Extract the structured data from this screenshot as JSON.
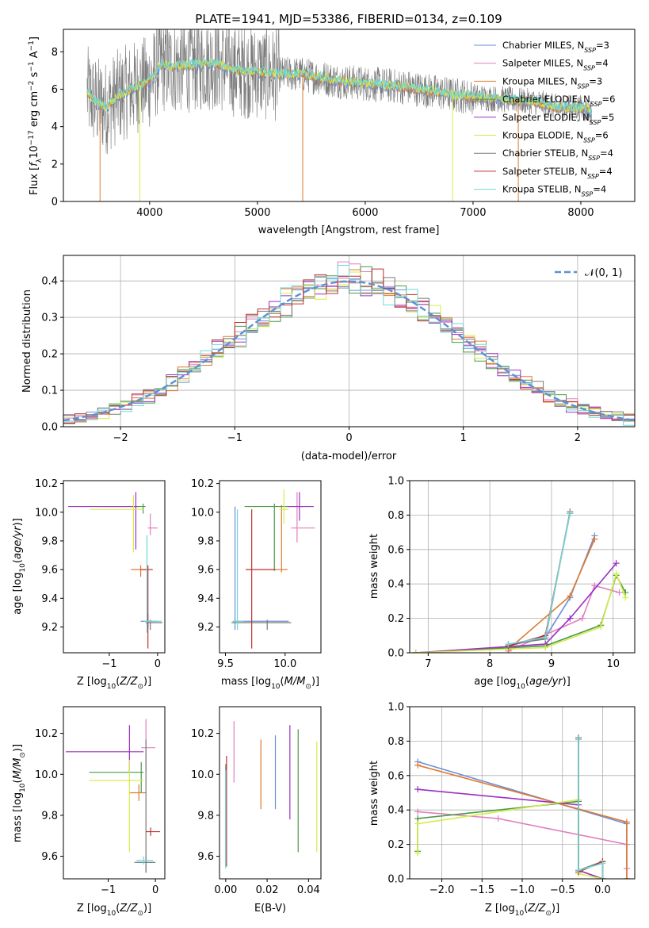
{
  "title": "PLATE=1941, MJD=53386, FIBERID=0134, z=0.109",
  "colors": {
    "Chabrier MILES": "#6c8ed8",
    "Salpeter MILES": "#e07fbf",
    "Kroupa MILES": "#e07a2e",
    "Chabrier ELODIE": "#4a9a4a",
    "Salpeter ELODIE": "#9b30c0",
    "Kroupa ELODIE": "#d6ec4a",
    "Chabrier STELIB": "#7a7a7a",
    "Salpeter STELIB": "#c03030",
    "Kroupa STELIB": "#6fd8d8",
    "gaussian": "#5b8fd6"
  },
  "chart_data": [
    {
      "id": "spectrum",
      "type": "line",
      "xlabel": "wavelength [Angstrom, rest frame]",
      "ylabel": "Flux [f_λ 10^-17 erg cm^-2 s^-1 A^-1]",
      "xlim": [
        3200,
        8500
      ],
      "ylim": [
        0,
        9.2
      ],
      "xticks": [
        4000,
        5000,
        6000,
        7000,
        8000
      ],
      "yticks": [
        0,
        2,
        4,
        6,
        8
      ],
      "legend_placement": "top-right",
      "legend": [
        {
          "name": "Chabrier MILES",
          "nssp": "3"
        },
        {
          "name": "Salpeter MILES",
          "nssp": "4"
        },
        {
          "name": "Kroupa MILES",
          "nssp": "3"
        },
        {
          "name": "Chabrier ELODIE",
          "nssp": "6"
        },
        {
          "name": "Salpeter ELODIE",
          "nssp": "5"
        },
        {
          "name": "Kroupa ELODIE",
          "nssp": "6"
        },
        {
          "name": "Chabrier STELIB",
          "nssp": "4"
        },
        {
          "name": "Salpeter STELIB",
          "nssp": "4"
        },
        {
          "name": "Kroupa STELIB",
          "nssp": "4"
        }
      ],
      "model_continuum": {
        "wavelength": [
          3420,
          3500,
          3600,
          3700,
          3800,
          3900,
          4000,
          4100,
          4200,
          4400,
          4600,
          4800,
          5000,
          5200,
          5400,
          5600,
          5800,
          6000,
          6200,
          6400,
          6600,
          6800,
          7000,
          7200,
          7400,
          7600,
          7800,
          8000,
          8100
        ],
        "flux": [
          5.8,
          5.3,
          5.0,
          5.6,
          5.9,
          6.2,
          6.4,
          7.3,
          7.2,
          7.3,
          7.4,
          7.0,
          6.9,
          6.8,
          6.8,
          6.6,
          6.4,
          6.3,
          6.2,
          6.1,
          5.9,
          5.7,
          5.6,
          5.5,
          5.4,
          5.3,
          5.0,
          5.0,
          4.8
        ]
      },
      "data_noise_band": 1.6,
      "dropouts": [
        {
          "wavelength": 3540,
          "color": "Kroupa MILES"
        },
        {
          "wavelength": 3910,
          "color": "Kroupa ELODIE"
        },
        {
          "wavelength": 5420,
          "color": "Kroupa MILES"
        },
        {
          "wavelength": 6810,
          "color": "Kroupa ELODIE"
        },
        {
          "wavelength": 7420,
          "color": "Kroupa MILES"
        }
      ]
    },
    {
      "id": "residuals",
      "type": "histogram",
      "xlabel": "(data-model)/error",
      "ylabel": "Normed distribution",
      "xlim": [
        -2.5,
        2.5
      ],
      "ylim": [
        0,
        0.47
      ],
      "xticks": [
        -2,
        -1,
        0,
        1,
        2
      ],
      "yticks": [
        0,
        0.1,
        0.2,
        0.3,
        0.4
      ],
      "grid": true,
      "legend_placement": "top-right",
      "gaussian_label": "𝒩(0, 1)",
      "bin_width": 0.1,
      "bin_start": -2.5,
      "gaussian_sigma": 1.0
    },
    {
      "id": "Z_age",
      "type": "errorbar",
      "xlabel": "Z [log10(Z/Z⊙)]",
      "ylabel": "age [log10(age/yr)]",
      "xlim": [
        -1.95,
        0.15
      ],
      "ylim": [
        9.02,
        10.22
      ],
      "xticks": [
        -1,
        0
      ],
      "yticks": [
        9.2,
        9.4,
        9.6,
        9.8,
        10.0,
        10.2
      ],
      "points": [
        {
          "series": "Chabrier MILES",
          "x": -0.2,
          "y": 9.24,
          "xerr": [
            0.15,
            0.2
          ],
          "yerr": [
            0.05,
            0.05
          ]
        },
        {
          "series": "Salpeter MILES",
          "x": -0.15,
          "y": 9.89,
          "xerr": [
            0.05,
            0.15
          ],
          "yerr": [
            0.05,
            0.1
          ]
        },
        {
          "series": "Kroupa MILES",
          "x": -0.35,
          "y": 9.6,
          "xerr": [
            0.2,
            0.15
          ],
          "yerr": [
            0.05,
            0.03
          ]
        },
        {
          "series": "Chabrier ELODIE",
          "x": -0.3,
          "y": 10.04,
          "xerr": [
            0.95,
            0.05
          ],
          "yerr": [
            0.05,
            0.02
          ]
        },
        {
          "series": "Salpeter ELODIE",
          "x": -0.45,
          "y": 10.04,
          "xerr": [
            1.4,
            0.05
          ],
          "yerr": [
            0.3,
            0.1
          ]
        },
        {
          "series": "Kroupa ELODIE",
          "x": -0.5,
          "y": 10.02,
          "xerr": [
            0.9,
            0.2
          ],
          "yerr": [
            0.3,
            0.1
          ]
        },
        {
          "series": "Chabrier STELIB",
          "x": -0.15,
          "y": 9.23,
          "xerr": [
            0.1,
            0.25
          ],
          "yerr": [
            0.05,
            0.02
          ]
        },
        {
          "series": "Salpeter STELIB",
          "x": -0.2,
          "y": 9.6,
          "xerr": [
            0.15,
            0.1
          ],
          "yerr": [
            0.55,
            0.03
          ]
        },
        {
          "series": "Kroupa STELIB",
          "x": -0.22,
          "y": 9.24,
          "xerr": [
            0.05,
            0.3
          ],
          "yerr": [
            0.08,
            0.6
          ]
        }
      ]
    },
    {
      "id": "mass_age",
      "type": "errorbar",
      "xlabel": "mass [log10(M/M⊙)]",
      "ylabel": "",
      "xlim": [
        9.45,
        10.3
      ],
      "ylim": [
        9.02,
        10.22
      ],
      "xticks": [
        9.5,
        10.0
      ],
      "yticks": [
        9.2,
        9.4,
        9.6,
        9.8,
        10.0,
        10.2
      ],
      "points": [
        {
          "series": "Chabrier MILES",
          "x": 9.58,
          "y": 9.24,
          "xerr": [
            0.02,
            0.45
          ],
          "yerr": [
            0.06,
            0.8
          ]
        },
        {
          "series": "Salpeter MILES",
          "x": 10.1,
          "y": 9.89,
          "xerr": [
            0.05,
            0.15
          ],
          "yerr": [
            0.1,
            0.25
          ]
        },
        {
          "series": "Kroupa MILES",
          "x": 9.97,
          "y": 9.6,
          "xerr": [
            0.05,
            0.05
          ],
          "yerr": [
            0.02,
            0.45
          ]
        },
        {
          "series": "Chabrier ELODIE",
          "x": 9.91,
          "y": 10.04,
          "xerr": [
            0.25,
            0.25
          ],
          "yerr": [
            0.45,
            0.02
          ]
        },
        {
          "series": "Salpeter ELODIE",
          "x": 10.12,
          "y": 10.04,
          "xerr": [
            0.1,
            0.12
          ],
          "yerr": [
            0.1,
            0.1
          ]
        },
        {
          "series": "Kroupa ELODIE",
          "x": 9.99,
          "y": 10.02,
          "xerr": [
            0.04,
            0.04
          ],
          "yerr": [
            0.1,
            0.14
          ]
        },
        {
          "series": "Chabrier STELIB",
          "x": 9.85,
          "y": 9.23,
          "xerr": [
            0.3,
            0.2
          ],
          "yerr": [
            0.05,
            0.02
          ]
        },
        {
          "series": "Salpeter STELIB",
          "x": 9.72,
          "y": 9.6,
          "xerr": [
            0.05,
            0.2
          ],
          "yerr": [
            0.55,
            0.42
          ]
        },
        {
          "series": "Kroupa STELIB",
          "x": 9.6,
          "y": 9.24,
          "xerr": [
            0.04,
            0.05
          ],
          "yerr": [
            0.06,
            0.78
          ]
        }
      ]
    },
    {
      "id": "age_weight",
      "type": "line",
      "xlabel": "age [log10(age/yr)]",
      "ylabel": "mass weight",
      "xlim": [
        6.7,
        10.35
      ],
      "ylim": [
        0,
        1.0
      ],
      "xticks": [
        7,
        8,
        9,
        10
      ],
      "yticks": [
        0,
        0.2,
        0.4,
        0.6,
        0.8,
        1.0
      ],
      "grid": true,
      "series": [
        {
          "name": "Chabrier MILES",
          "x": [
            8.3,
            8.9,
            9.3,
            9.7
          ],
          "y": [
            0.04,
            0.09,
            0.32,
            0.68
          ]
        },
        {
          "name": "Salpeter MILES",
          "x": [
            8.3,
            9.5,
            9.7,
            10.1
          ],
          "y": [
            0.01,
            0.2,
            0.39,
            0.35
          ]
        },
        {
          "name": "Kroupa MILES",
          "x": [
            8.3,
            9.3,
            9.7
          ],
          "y": [
            0.02,
            0.33,
            0.66
          ]
        },
        {
          "name": "Chabrier ELODIE",
          "x": [
            6.8,
            8.9,
            9.8,
            10.05,
            10.2
          ],
          "y": [
            0.0,
            0.04,
            0.16,
            0.45,
            0.35
          ]
        },
        {
          "name": "Salpeter ELODIE",
          "x": [
            6.8,
            8.9,
            9.3,
            10.05
          ],
          "y": [
            0.0,
            0.05,
            0.2,
            0.52
          ]
        },
        {
          "name": "Kroupa ELODIE",
          "x": [
            6.8,
            8.9,
            9.8,
            10.05,
            10.2
          ],
          "y": [
            0.0,
            0.03,
            0.15,
            0.46,
            0.32
          ]
        },
        {
          "name": "Chabrier STELIB",
          "x": [
            8.3,
            8.9,
            9.3
          ],
          "y": [
            0.05,
            0.08,
            0.82
          ]
        },
        {
          "name": "Salpeter STELIB",
          "x": [
            8.3,
            8.9,
            9.3
          ],
          "y": [
            0.04,
            0.1,
            0.81
          ]
        },
        {
          "name": "Kroupa STELIB",
          "x": [
            8.3,
            8.9,
            9.3
          ],
          "y": [
            0.05,
            0.09,
            0.81
          ]
        }
      ]
    },
    {
      "id": "Z_mass",
      "type": "errorbar",
      "xlabel": "Z [log10(Z/Z⊙)]",
      "ylabel": "mass [log10(M/M⊙)]",
      "xlim": [
        -1.95,
        0.2
      ],
      "ylim": [
        9.49,
        10.33
      ],
      "xticks": [
        -1,
        0
      ],
      "yticks": [
        9.6,
        9.8,
        10.0,
        10.2
      ],
      "points": [
        {
          "series": "Chabrier MILES",
          "x": -0.2,
          "y": 9.57,
          "xerr": [
            0.2,
            0.2
          ],
          "yerr": [
            0.05,
            0.03
          ]
        },
        {
          "series": "Salpeter MILES",
          "x": -0.2,
          "y": 10.13,
          "xerr": [
            0.1,
            0.2
          ],
          "yerr": [
            0.12,
            0.14
          ]
        },
        {
          "series": "Kroupa MILES",
          "x": -0.35,
          "y": 9.91,
          "xerr": [
            0.2,
            0.15
          ],
          "yerr": [
            0.04,
            0.04
          ]
        },
        {
          "series": "Chabrier ELODIE",
          "x": -0.3,
          "y": 10.01,
          "xerr": [
            1.1,
            0.05
          ],
          "yerr": [
            0.1,
            0.05
          ]
        },
        {
          "series": "Salpeter ELODIE",
          "x": -0.55,
          "y": 10.11,
          "xerr": [
            1.35,
            0.3
          ],
          "yerr": [
            0.1,
            0.13
          ]
        },
        {
          "series": "Kroupa ELODIE",
          "x": -0.55,
          "y": 9.97,
          "xerr": [
            0.85,
            0.3
          ],
          "yerr": [
            0.35,
            0.1
          ]
        },
        {
          "series": "Chabrier STELIB",
          "x": -0.2,
          "y": 9.57,
          "xerr": [
            0.25,
            0.2
          ],
          "yerr": [
            0.05,
            0.6
          ]
        },
        {
          "series": "Salpeter STELIB",
          "x": -0.1,
          "y": 9.72,
          "xerr": [
            0.1,
            0.2
          ],
          "yerr": [
            0.02,
            0.02
          ]
        },
        {
          "series": "Kroupa STELIB",
          "x": -0.25,
          "y": 9.58,
          "xerr": [
            0.15,
            0.2
          ],
          "yerr": [
            0.02,
            0.02
          ]
        }
      ]
    },
    {
      "id": "ebv_mass",
      "type": "errorbar",
      "xlabel": "E(B-V)",
      "ylabel": "",
      "xlim": [
        -0.003,
        0.046
      ],
      "ylim": [
        9.49,
        10.33
      ],
      "xticks": [
        0.0,
        0.02,
        0.04
      ],
      "yticks": [
        9.6,
        9.8,
        10.0,
        10.2
      ],
      "points": [
        {
          "series": "Chabrier MILES",
          "x": 0.024,
          "y": 10.01,
          "xerr": [
            0,
            0
          ],
          "yerr": [
            0.18,
            0.18
          ]
        },
        {
          "series": "Salpeter MILES",
          "x": 0.004,
          "y": 10.11,
          "xerr": [
            0,
            0
          ],
          "yerr": [
            0.15,
            0.15
          ]
        },
        {
          "series": "Kroupa MILES",
          "x": 0.017,
          "y": 10.0,
          "xerr": [
            0,
            0
          ],
          "yerr": [
            0.17,
            0.17
          ]
        },
        {
          "series": "Chabrier ELODIE",
          "x": 0.035,
          "y": 9.92,
          "xerr": [
            0,
            0
          ],
          "yerr": [
            0.3,
            0.3
          ]
        },
        {
          "series": "Salpeter ELODIE",
          "x": 0.031,
          "y": 10.01,
          "xerr": [
            0,
            0
          ],
          "yerr": [
            0.23,
            0.23
          ]
        },
        {
          "series": "Kroupa ELODIE",
          "x": 0.044,
          "y": 9.89,
          "xerr": [
            0,
            0
          ],
          "yerr": [
            0.27,
            0.27
          ]
        },
        {
          "series": "Chabrier STELIB",
          "x": 0.0,
          "y": 9.8,
          "xerr": [
            0,
            0
          ],
          "yerr": [
            0.25,
            0.25
          ]
        },
        {
          "series": "Salpeter STELIB",
          "x": 0.0004,
          "y": 9.82,
          "xerr": [
            0,
            0
          ],
          "yerr": [
            0.27,
            0.27
          ]
        },
        {
          "series": "Kroupa STELIB",
          "x": 0.0,
          "y": 9.78,
          "xerr": [
            0,
            0
          ],
          "yerr": [
            0.24,
            0.24
          ]
        }
      ]
    },
    {
      "id": "Z_weight",
      "type": "line",
      "xlabel": "Z [log10(Z/Z⊙)]",
      "ylabel": "mass weight",
      "xlim": [
        -2.4,
        0.4
      ],
      "ylim": [
        0,
        1.0
      ],
      "xticks": [
        -2.0,
        -1.5,
        -1.0,
        -0.5,
        0.0
      ],
      "yticks": [
        0,
        0.2,
        0.4,
        0.6,
        0.8,
        1.0
      ],
      "grid": true,
      "series": [
        {
          "name": "Chabrier MILES",
          "x": [
            -2.3,
            0.3,
            0.3
          ],
          "y": [
            0.68,
            0.32,
            0.0
          ]
        },
        {
          "name": "Salpeter MILES",
          "x": [
            -2.3,
            -1.3,
            0.3,
            0.3
          ],
          "y": [
            0.39,
            0.35,
            0.2,
            0.06
          ]
        },
        {
          "name": "Kroupa MILES",
          "x": [
            -2.3,
            0.3,
            0.3
          ],
          "y": [
            0.66,
            0.33,
            0.0
          ]
        },
        {
          "name": "Chabrier ELODIE",
          "x": [
            -2.3,
            -2.3,
            -0.3,
            -0.3,
            0.0
          ],
          "y": [
            0.16,
            0.35,
            0.45,
            0.05,
            0.0
          ]
        },
        {
          "name": "Salpeter ELODIE",
          "x": [
            -2.3,
            -0.3,
            -0.3,
            0.0
          ],
          "y": [
            0.52,
            0.43,
            0.05,
            0.0
          ]
        },
        {
          "name": "Kroupa ELODIE",
          "x": [
            -2.3,
            -2.3,
            -0.3,
            -0.3,
            0.0
          ],
          "y": [
            0.15,
            0.32,
            0.46,
            0.03,
            0.0
          ]
        },
        {
          "name": "Chabrier STELIB",
          "x": [
            -0.3,
            -0.3,
            0.0,
            0.0
          ],
          "y": [
            0.82,
            0.05,
            0.1,
            0.0
          ]
        },
        {
          "name": "Salpeter STELIB",
          "x": [
            -0.3,
            -0.3,
            0.0,
            0.0
          ],
          "y": [
            0.81,
            0.04,
            0.1,
            0.0
          ]
        },
        {
          "name": "Kroupa STELIB",
          "x": [
            -0.3,
            -0.3,
            0.0,
            0.0
          ],
          "y": [
            0.81,
            0.05,
            0.09,
            0.0
          ]
        }
      ]
    }
  ]
}
